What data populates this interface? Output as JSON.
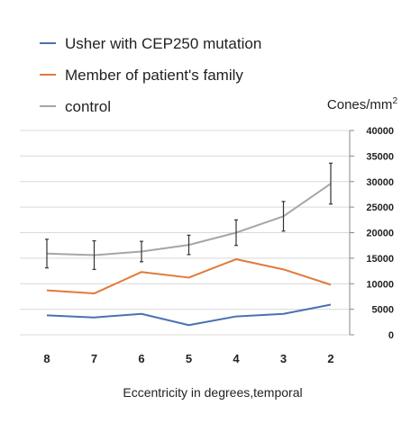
{
  "chart_data": {
    "type": "line",
    "categories": [
      "8",
      "7",
      "6",
      "5",
      "4",
      "3",
      "2"
    ],
    "xlabel": "Eccentricity in degrees,temporal",
    "ylabel": "Cones/mm",
    "ylabel_sup": "2",
    "ylim": [
      0,
      40000
    ],
    "yticks": [
      "0",
      "5000",
      "10000",
      "15000",
      "20000",
      "25000",
      "30000",
      "35000",
      "40000"
    ],
    "grid": true,
    "legend_position": "top-left",
    "series": [
      {
        "name": "Usher with CEP250 mutation",
        "color": "#4a72b0",
        "values": [
          3800,
          3400,
          4100,
          1900,
          3600,
          4100,
          5900
        ]
      },
      {
        "name": "Member of patient's family",
        "color": "#e07b39",
        "values": [
          8700,
          8100,
          12300,
          11200,
          14800,
          12800,
          9800
        ]
      },
      {
        "name": "control",
        "color": "#a6a6a6",
        "values": [
          15900,
          15600,
          16300,
          17600,
          20000,
          23200,
          29600
        ],
        "error": [
          2800,
          2800,
          2000,
          1900,
          2500,
          2900,
          4000
        ]
      }
    ]
  }
}
